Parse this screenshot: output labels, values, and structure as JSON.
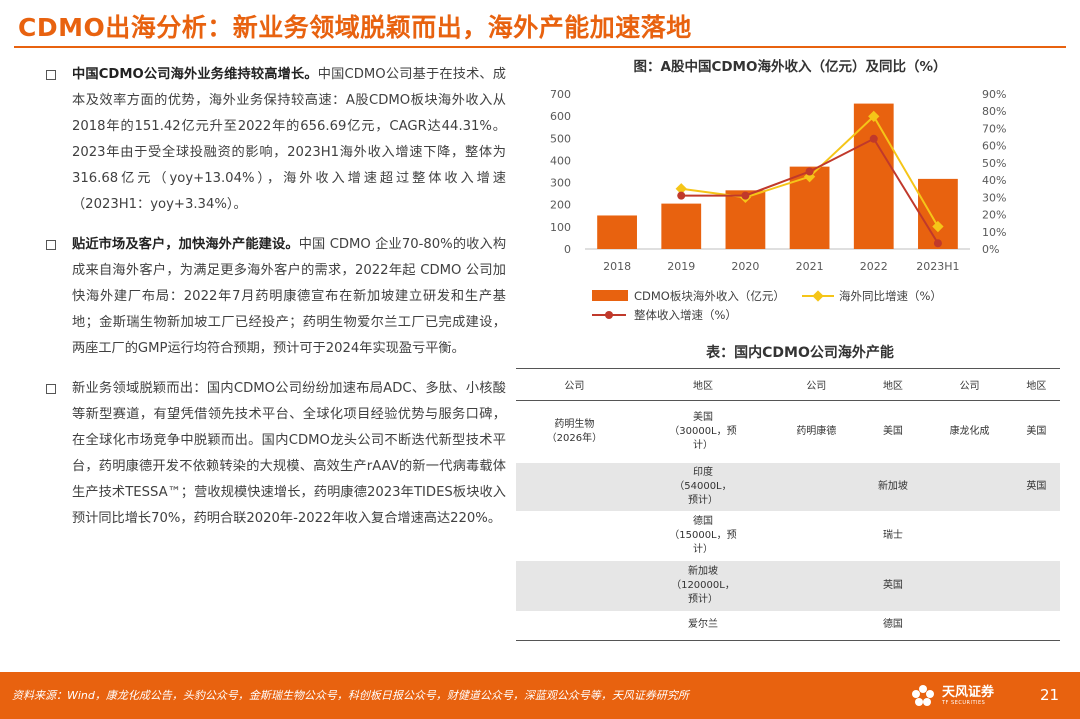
{
  "title": "CDMO出海分析：新业务领域脱颖而出，海外产能加速落地",
  "bullets": [
    {
      "lead": "中国CDMO公司海外业务维持较高增长。",
      "text": "中国CDMO公司基于在技术、成本及效率方面的优势，海外业务保持较高速：A股CDMO板块海外收入从2018年的151.42亿元升至2022年的656.69亿元，CAGR达44.31%。2023年由于受全球投融资的影响，2023H1海外收入增速下降，整体为316.68亿元（yoy+13.04%），海外收入增速超过整体收入增速（2023H1：yoy+3.34%）。"
    },
    {
      "lead": "贴近市场及客户，加快海外产能建设。",
      "text": "中国 CDMO 企业70-80%的收入构成来自海外客户，为满足更多海外客户的需求，2022年起 CDMO 公司加快海外建厂布局：2022年7月药明康德宣布在新加坡建立研发和生产基地；金斯瑞生物新加坡工厂已经投产；药明生物爱尔兰工厂已完成建设，两座工厂的GMP运行均符合预期，预计可于2024年实现盈亏平衡。"
    },
    {
      "lead": "",
      "text": "新业务领域脱颖而出：国内CDMO公司纷纷加速布局ADC、多肽、小核酸等新型赛道，有望凭借领先技术平台、全球化项目经验优势与服务口碑，在全球化市场竞争中脱颖而出。国内CDMO龙头公司不断迭代新型技术平台，药明康德开发不依赖转染的大规模、高效生产rAAV的新一代病毒载体生产技术TESSA™；营收规模快速增长，药明康德2023年TIDES板块收入预计同比增长70%，药明合联2020年-2022年收入复合增速高达220%。"
    }
  ],
  "chart_title": "图：A股中国CDMO海外收入（亿元）及同比（%）",
  "chart_data": {
    "type": "bar",
    "categories": [
      "2018",
      "2019",
      "2020",
      "2021",
      "2022",
      "2023H1"
    ],
    "series": [
      {
        "name": "CDMO板块海外收入（亿元）",
        "kind": "bar",
        "axis": "left",
        "color": "#e8620f",
        "values": [
          151.42,
          205,
          265,
          372,
          656.69,
          316.68
        ]
      },
      {
        "name": "海外同比增速（%）",
        "kind": "line",
        "axis": "right",
        "color": "#f5c518",
        "values": [
          null,
          35,
          30,
          42,
          77,
          13.04
        ]
      },
      {
        "name": "整体收入增速（%）",
        "kind": "line",
        "axis": "right",
        "color": "#c0392b",
        "values": [
          null,
          31,
          31,
          45,
          64,
          3.34
        ]
      }
    ],
    "left_axis": {
      "min": 0,
      "max": 700,
      "ticks": [
        "0",
        "100",
        "200",
        "300",
        "400",
        "500",
        "600",
        "700"
      ]
    },
    "right_axis": {
      "min": 0,
      "max": 90,
      "ticks": [
        "0%",
        "10%",
        "20%",
        "30%",
        "40%",
        "50%",
        "60%",
        "70%",
        "80%",
        "90%"
      ]
    },
    "grid": false
  },
  "table_title": "表：国内CDMO公司海外产能",
  "table": {
    "headers": [
      "公司",
      "地区",
      "公司",
      "地区",
      "公司",
      "地区"
    ],
    "rows": [
      [
        "药明生物\n（2026年）",
        "美国\n（30000L，预\n计）",
        "药明康德",
        "美国",
        "康龙化成",
        "美国"
      ],
      [
        "",
        "印度\n（54000L，\n预计）",
        "",
        "新加坡",
        "",
        "英国"
      ],
      [
        "",
        "德国\n（15000L，预\n计）",
        "",
        "瑞士",
        "",
        ""
      ],
      [
        "",
        "新加坡\n（120000L，\n预计）",
        "",
        "英国",
        "",
        ""
      ],
      [
        "",
        "爱尔兰",
        "",
        "德国",
        "",
        ""
      ]
    ]
  },
  "footer": {
    "source": "资料来源：Wind，康龙化成公告，头豹公众号，金斯瑞生物公众号，科创板日报公众号，财健道公众号，深蓝观公众号等，天风证券研究所",
    "logo_cn": "天风证券",
    "logo_en": "TF SECURITIES",
    "page": "21"
  },
  "colors": {
    "accent": "#e8620f",
    "yellow_line": "#f5c518",
    "red_line": "#c0392b"
  }
}
